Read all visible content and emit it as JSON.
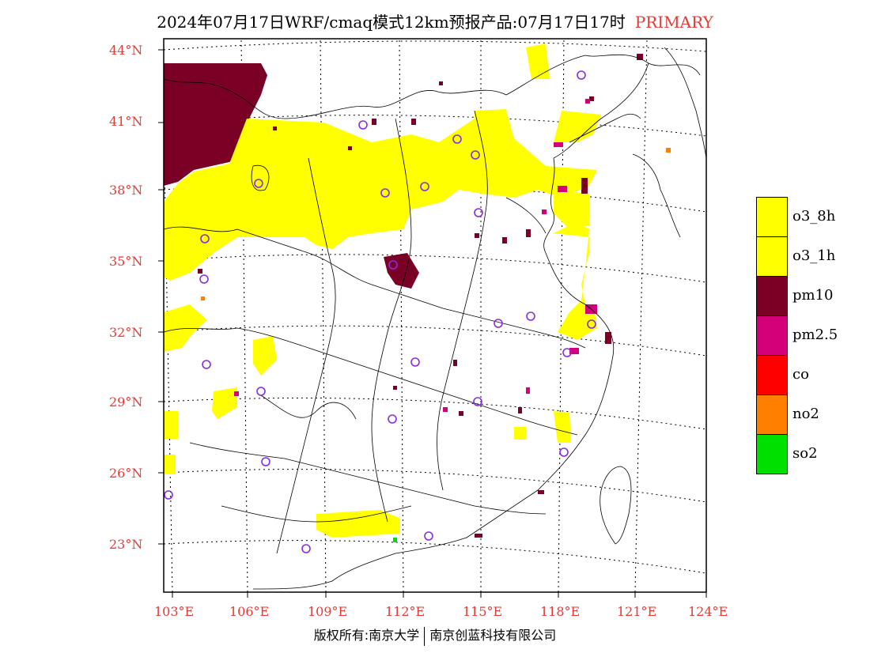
{
  "title": {
    "main": "2024年07月17日WRF/cmaq模式12km预报产品:07月17日17时",
    "tag": "PRIMARY"
  },
  "axes": {
    "lat_labels": [
      "44°N",
      "41°N",
      "38°N",
      "35°N",
      "32°N",
      "29°N",
      "26°N",
      "23°N"
    ],
    "lon_labels": [
      "103°E",
      "106°E",
      "109°E",
      "112°E",
      "115°E",
      "118°E",
      "121°E",
      "124°E"
    ]
  },
  "legend": {
    "items": [
      {
        "label": "o3_8h",
        "color": "#ffff00"
      },
      {
        "label": "o3_1h",
        "color": "#ffff00"
      },
      {
        "label": "pm10",
        "color": "#7a0026"
      },
      {
        "label": "pm2.5",
        "color": "#d3007a"
      },
      {
        "label": "co",
        "color": "#ff0000"
      },
      {
        "label": "no2",
        "color": "#ff7f00"
      },
      {
        "label": "so2",
        "color": "#00e000"
      }
    ]
  },
  "footer": {
    "left": "版权所有:南京大学",
    "right": "南京创蓝科技有限公司"
  },
  "colors": {
    "label_red": "#e53935",
    "station_circle": "#8a2be2"
  }
}
